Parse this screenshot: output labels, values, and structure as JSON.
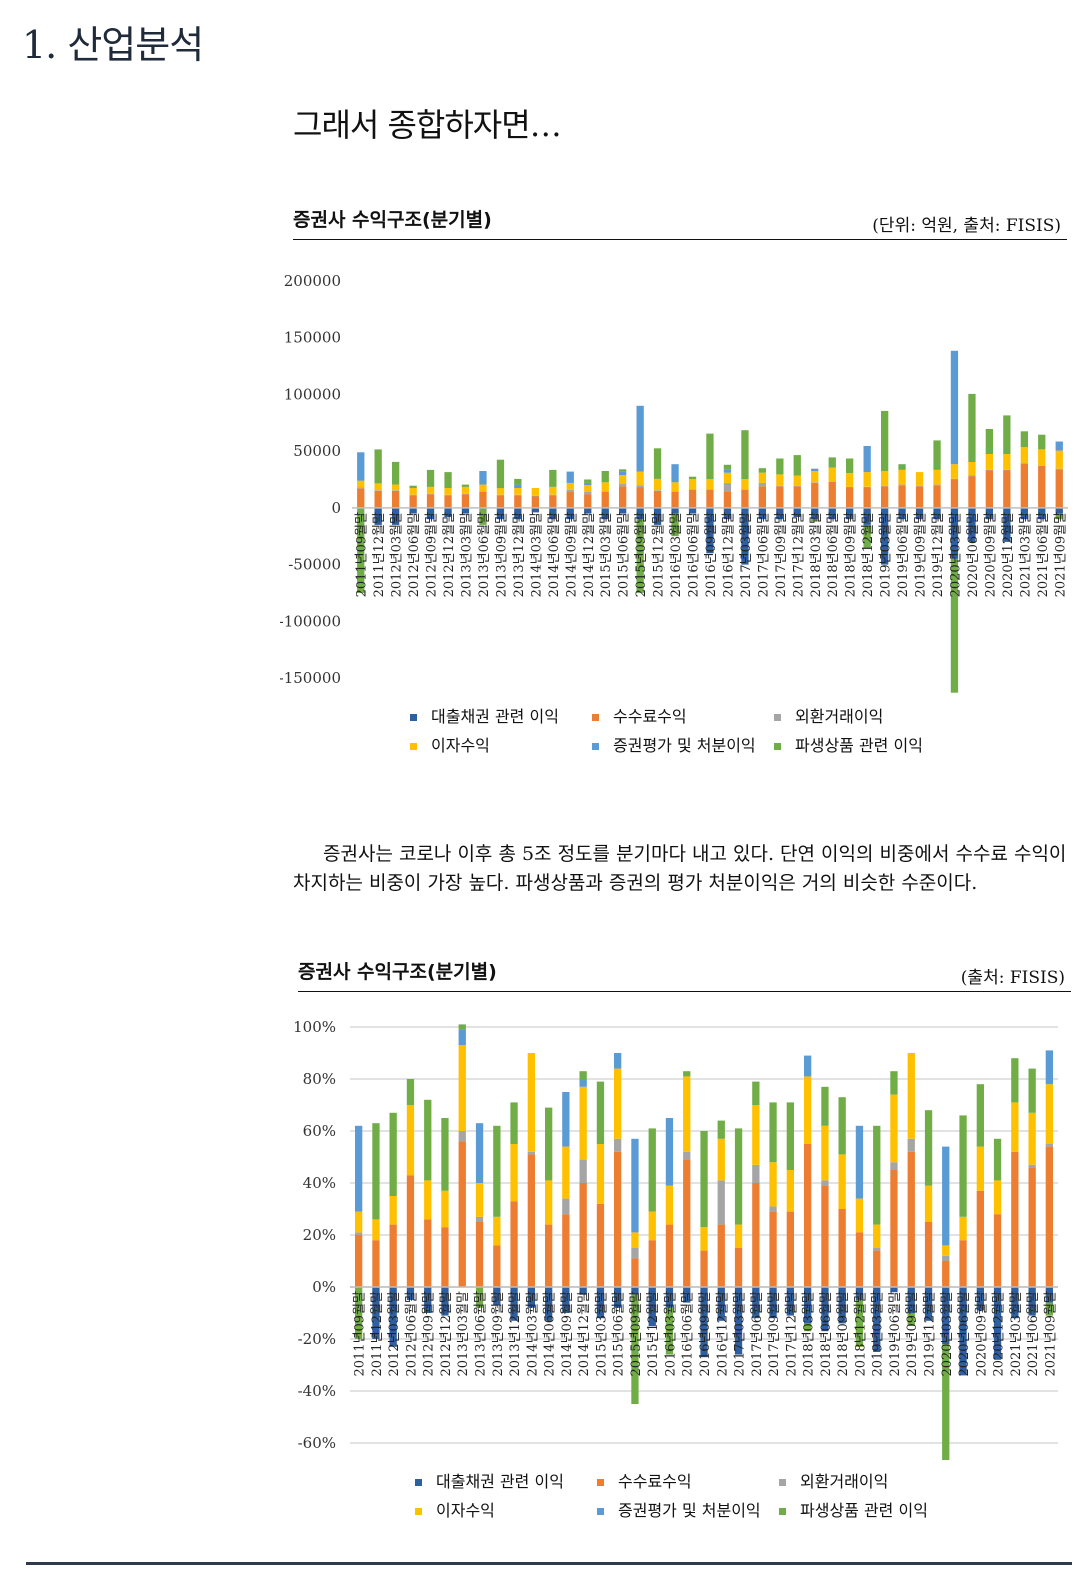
{
  "page": {
    "section_title": "1. 산업분석",
    "main_title": "그래서 종합하자면…"
  },
  "colors": {
    "loan": "#2E5FA1",
    "fee": "#ED7D31",
    "fx": "#A5A5A5",
    "interest": "#FFC000",
    "securities": "#5B9BD5",
    "derivatives": "#70AD47"
  },
  "chart1": {
    "heading": "증권사 수익구조(분기별)",
    "source": "(단위: 억원, 출처:  FISIS)"
  },
  "chart2": {
    "heading": "증권사 수익구조(분기별)",
    "source": "(출처:  FISIS)"
  },
  "legend": {
    "loan": "대출채권 관련 이익",
    "fee": "수수료수익",
    "fx": "외환거래이익",
    "interest": "이자수익",
    "securities": "증권평가 및 처분이익",
    "derivatives": "파생상품 관련 이익"
  },
  "paragraph": "증권사는 코로나 이후 총 5조 정도를 분기마다 내고 있다. 단연 이익의 비중에서 수수료 수익이 차지하는 비중이 가장 높다. 파생상품과 증권의 평가 처분이익은 거의 비슷한 수준이다.",
  "chart_data": [
    {
      "type": "bar",
      "stacked": true,
      "title": "증권사 수익구조(분기별)",
      "unit": "억원",
      "ylim": [
        -150000,
        200000
      ],
      "yticks": [
        -150000,
        -100000,
        -50000,
        0,
        50000,
        100000,
        150000,
        200000
      ],
      "ytick_labels": [
        "-150000",
        "-100000",
        "-50000",
        "0",
        "50000",
        "100000",
        "150000",
        "200000"
      ],
      "grid": false,
      "legend_position": "bottom",
      "categories": [
        "2011년09월말",
        "2011년12월말",
        "2012년03월말",
        "2012년06월말",
        "2012년09월말",
        "2012년12월말",
        "2013년03월말",
        "2013년06월말",
        "2013년09월말",
        "2013년12월말",
        "2014년03월말",
        "2014년06월말",
        "2014년09월말",
        "2014년12월말",
        "2015년03월말",
        "2015년06월말",
        "2015년09월말",
        "2015년12월말",
        "2016년03월말",
        "2016년06월말",
        "2016년09월말",
        "2016년12월말",
        "2017년03월말",
        "2017년06월말",
        "2017년09월말",
        "2017년12월말",
        "2018년03월말",
        "2018년06월말",
        "2018년09월말",
        "2018년12월말",
        "2019년03월말",
        "2019년06월말",
        "2019년09월말",
        "2019년12월말",
        "2020년03월말",
        "2020년06월말",
        "2020년09월말",
        "2020년12월말",
        "2021년03월말",
        "2021년06월말",
        "2021년09월말"
      ],
      "series": [
        {
          "name": "대출채권 관련 이익",
          "key": "loan",
          "values": [
            0,
            -15000,
            -15000,
            -5000,
            -10000,
            -8000,
            -5000,
            0,
            -10000,
            -10000,
            -4000,
            -10000,
            -10000,
            -5000,
            -10000,
            -5000,
            -10000,
            -15000,
            -5000,
            -5000,
            -40000,
            -10000,
            -50000,
            -10000,
            -10000,
            -8000,
            -10000,
            -10000,
            -10000,
            -15000,
            -50000,
            -10000,
            -10000,
            -10000,
            -45000,
            -30000,
            -10000,
            -30000,
            -10000,
            -10000,
            -5000
          ]
        },
        {
          "name": "수수료수익",
          "key": "fee",
          "values": [
            17000,
            15000,
            15000,
            11000,
            12000,
            11000,
            12000,
            14000,
            11000,
            11000,
            10000,
            11000,
            14000,
            12000,
            14000,
            19000,
            18000,
            15000,
            14000,
            16000,
            16000,
            14000,
            16000,
            19000,
            19000,
            19000,
            22000,
            23000,
            18000,
            18000,
            19000,
            20000,
            19000,
            20000,
            25000,
            28000,
            33000,
            33000,
            39000,
            37000,
            34000
          ]
        },
        {
          "name": "외환거래이익",
          "key": "fx",
          "values": [
            1000,
            500,
            500,
            500,
            500,
            500,
            500,
            500,
            500,
            500,
            500,
            500,
            2000,
            2000,
            500,
            2000,
            2000,
            500,
            500,
            500,
            500,
            8000,
            500,
            3000,
            500,
            500,
            500,
            500,
            500,
            500,
            500,
            500,
            500,
            500,
            500,
            500,
            500,
            500,
            500,
            500,
            500
          ]
        },
        {
          "name": "이자수익",
          "key": "interest",
          "values": [
            6000,
            6000,
            5000,
            6000,
            6000,
            6000,
            6000,
            6000,
            6000,
            6000,
            7000,
            7000,
            6000,
            6000,
            8000,
            8000,
            12000,
            10000,
            8000,
            9000,
            9000,
            9000,
            9000,
            9000,
            10000,
            9000,
            10000,
            12000,
            12000,
            13000,
            13000,
            13000,
            12000,
            13000,
            13000,
            12000,
            14000,
            14000,
            14000,
            14000,
            16000
          ]
        },
        {
          "name": "증권평가 및 처분이익",
          "key": "securities",
          "values": [
            25000,
            0,
            0,
            0,
            0,
            0,
            0,
            12000,
            0,
            3000,
            0,
            0,
            10000,
            2000,
            0,
            3000,
            58000,
            0,
            16000,
            0,
            0,
            3000,
            0,
            0,
            0,
            0,
            2000,
            0,
            0,
            23000,
            0,
            0,
            0,
            0,
            100000,
            0,
            0,
            0,
            0,
            0,
            8000
          ]
        },
        {
          "name": "파생상품 관련 이익",
          "key": "derivatives",
          "values": [
            -75000,
            30000,
            20000,
            2000,
            15000,
            14000,
            2000,
            -15000,
            25000,
            5000,
            0,
            15000,
            0,
            3000,
            10000,
            2000,
            -65000,
            27000,
            -20000,
            2000,
            40000,
            4000,
            43000,
            4000,
            14000,
            18000,
            -2000,
            9000,
            13000,
            -20000,
            53000,
            5000,
            0,
            26000,
            -118000,
            60000,
            22000,
            34000,
            14000,
            13000,
            -5000
          ]
        }
      ]
    },
    {
      "type": "bar",
      "stacked": true,
      "title": "증권사 수익구조(분기별)",
      "unit": "%",
      "ylim": [
        -60,
        100
      ],
      "yticks": [
        -60,
        -40,
        -20,
        0,
        20,
        40,
        60,
        80,
        100
      ],
      "ytick_labels": [
        "-60%",
        "-40%",
        "-20%",
        "0%",
        "20%",
        "40%",
        "60%",
        "80%",
        "100%"
      ],
      "grid": true,
      "legend_position": "bottom",
      "categories": [
        "2011년09월말",
        "2011년12월말",
        "2012년03월말",
        "2012년06월말",
        "2012년09월말",
        "2012년12월말",
        "2013년03월말",
        "2013년06월말",
        "2013년09월말",
        "2013년12월말",
        "2014년03월말",
        "2014년06월말",
        "2014년09월말",
        "2014년12월말",
        "2015년03월말",
        "2015년06월말",
        "2015년09월말",
        "2015년12월말",
        "2016년03월말",
        "2016년06월말",
        "2016년09월말",
        "2016년12월말",
        "2017년03월말",
        "2017년06월말",
        "2017년09월말",
        "2017년12월말",
        "2018년03월말",
        "2018년06월말",
        "2018년09월말",
        "2018년12월말",
        "2019년03월말",
        "2019년06월말",
        "2019년09월말",
        "2019년12월말",
        "2020년03월말",
        "2020년06월말",
        "2020년09월말",
        "2020년12월말",
        "2021년03월말",
        "2021년06월말",
        "2021년09월말"
      ],
      "series": [
        {
          "name": "대출채권 관련 이익",
          "key": "loan",
          "values": [
            0,
            -20,
            -23,
            -5,
            -10,
            -11,
            0,
            0,
            -7,
            -13,
            -8,
            -13,
            -10,
            -3,
            -12,
            -8,
            -3,
            -15,
            -8,
            -6,
            -27,
            -13,
            -26,
            -12,
            -12,
            -11,
            -14,
            -17,
            -14,
            -5,
            -25,
            -2,
            -10,
            -13,
            -22,
            -34,
            -9,
            -28,
            -12,
            -11,
            -6
          ]
        },
        {
          "name": "수수료수익",
          "key": "fee",
          "values": [
            20,
            18,
            24,
            43,
            26,
            23,
            56,
            25,
            16,
            33,
            51,
            24,
            28,
            40,
            32,
            52,
            11,
            18,
            24,
            49,
            14,
            24,
            15,
            40,
            29,
            29,
            55,
            39,
            30,
            21,
            14,
            45,
            52,
            25,
            10,
            18,
            37,
            28,
            52,
            46,
            54
          ]
        },
        {
          "name": "외환거래이익",
          "key": "fx",
          "values": [
            1,
            0,
            0,
            0,
            0,
            0,
            4,
            2,
            0,
            0,
            1,
            0,
            6,
            9,
            0,
            5,
            4,
            0,
            0,
            3,
            0,
            17,
            0,
            7,
            2,
            0,
            0,
            2,
            0,
            0,
            1,
            3,
            5,
            0,
            2,
            0,
            0,
            0,
            0,
            1,
            1
          ]
        },
        {
          "name": "이자수익",
          "key": "interest",
          "values": [
            8,
            8,
            11,
            27,
            15,
            14,
            33,
            13,
            11,
            22,
            38,
            17,
            20,
            28,
            23,
            27,
            6,
            11,
            15,
            29,
            9,
            16,
            9,
            23,
            17,
            16,
            26,
            21,
            21,
            13,
            9,
            26,
            33,
            14,
            4,
            9,
            17,
            13,
            19,
            20,
            23
          ]
        },
        {
          "name": "증권평가 및 처분이익",
          "key": "securities",
          "values": [
            33,
            0,
            0,
            0,
            0,
            0,
            6,
            23,
            0,
            0,
            0,
            0,
            21,
            3,
            0,
            6,
            36,
            0,
            26,
            0,
            0,
            0,
            0,
            0,
            0,
            0,
            8,
            0,
            0,
            28,
            0,
            0,
            0,
            0,
            38,
            0,
            0,
            0,
            0,
            0,
            13
          ]
        },
        {
          "name": "파생상품 관련 이익",
          "key": "derivatives",
          "values": [
            -20,
            37,
            32,
            10,
            31,
            28,
            2,
            -8,
            35,
            16,
            0,
            28,
            0,
            3,
            24,
            0,
            -42,
            32,
            -18,
            2,
            37,
            7,
            37,
            9,
            23,
            26,
            -3,
            15,
            22,
            -18,
            38,
            9,
            -5,
            29,
            -46,
            39,
            24,
            16,
            17,
            17,
            -5
          ]
        }
      ]
    }
  ]
}
